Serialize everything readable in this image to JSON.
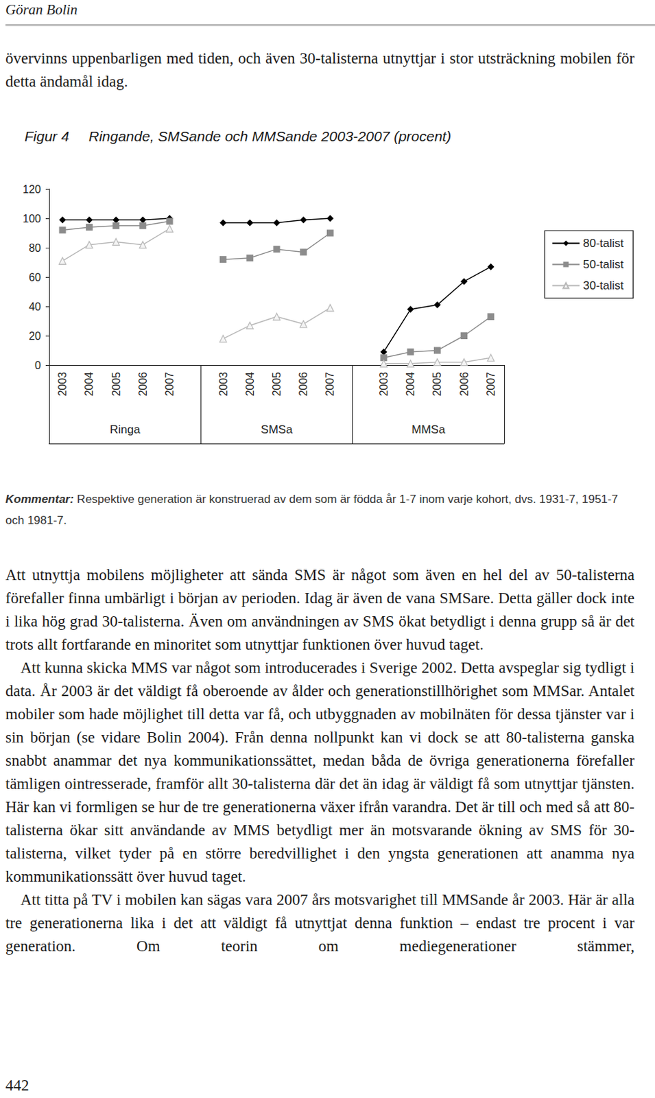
{
  "header": "Göran Bolin",
  "intro": "övervinns uppenbarligen med tiden, och även 30-talisterna utnyttjar i stor utsträckning mobilen för detta ändamål idag.",
  "chart_data": {
    "type": "line",
    "figure_label": "Figur 4",
    "title": "Ringande, SMSande och MMSande 2003-2007 (procent)",
    "categories": [
      "2003",
      "2004",
      "2005",
      "2006",
      "2007",
      null,
      "2003",
      "2004",
      "2005",
      "2006",
      "2007",
      null,
      "2003",
      "2004",
      "2005",
      "2006",
      "2007"
    ],
    "group_labels": [
      "Ringa",
      "SMSa",
      "MMSa"
    ],
    "series": [
      {
        "name": "80-talist",
        "color": "#000000",
        "marker": "diamond",
        "values": [
          99,
          99,
          99,
          99,
          100,
          null,
          97,
          97,
          97,
          99,
          100,
          null,
          9,
          38,
          41,
          57,
          67
        ]
      },
      {
        "name": "50-talist",
        "color": "#8c8c8c",
        "marker": "square",
        "values": [
          92,
          94,
          95,
          95,
          98,
          null,
          72,
          73,
          79,
          77,
          90,
          null,
          5,
          9,
          10,
          20,
          33
        ]
      },
      {
        "name": "30-talist",
        "color": "#b8b8b8",
        "marker": "triangle",
        "values": [
          71,
          82,
          84,
          82,
          93,
          null,
          18,
          27,
          33,
          28,
          39,
          null,
          1,
          1,
          2,
          2,
          5
        ]
      }
    ],
    "ylim": [
      0,
      120
    ],
    "yticks": [
      0,
      20,
      40,
      60,
      80,
      100,
      120
    ],
    "grid": false,
    "legend": "right"
  },
  "comment": {
    "label": "Kommentar:",
    "text": "Respektive generation är konstruerad av dem som är födda år 1-7 inom varje kohort, dvs. 1931-7, 1951-7 och 1981-7."
  },
  "paragraphs": [
    "Att utnyttja mobilens möjligheter att sända SMS är något som även en hel del av 50-talisterna förefaller finna umbärligt i början av perioden. Idag är även de vana SMSare. Detta gäller dock inte i lika hög grad 30-talisterna. Även om användningen av SMS ökat betydligt i denna grupp så är det trots allt fortfarande en minoritet som utnyttjar funktionen över huvud taget.",
    "Att kunna skicka MMS var något som introducerades i Sverige 2002. Detta avspeglar sig tydligt i data. År 2003 är det väldigt få oberoende av ålder och generationstillhörighet som MMSar. Antalet mobiler som hade möjlighet till detta var få, och utbyggnaden av mobilnäten för dessa tjänster var i sin början (se vidare Bolin 2004). Från denna nollpunkt kan vi dock se att 80-talisterna ganska snabbt anammar det nya kommunikationssättet, medan båda de övriga generationerna förefaller tämligen ointresserade, framför allt 30-talisterna där det än idag är väldigt få som utnyttjar tjänsten. Här kan vi formligen se hur de tre generationerna växer ifrån varandra. Det är till och med så att 80-talisterna ökar sitt användande av MMS betydligt mer än motsvarande ökning av SMS för 30-talisterna, vilket tyder på en större beredvillighet i den yngsta generationen att anamma nya kommunikationssätt över huvud taget.",
    "Att titta på TV i mobilen kan sägas vara 2007 års motsvarighet till MMSande år 2003. Här är alla tre generationerna lika i det att väldigt få utnyttjat denna funktion – endast tre procent i var generation. Om teorin om mediegenerationer stämmer,"
  ],
  "page_number": "442"
}
